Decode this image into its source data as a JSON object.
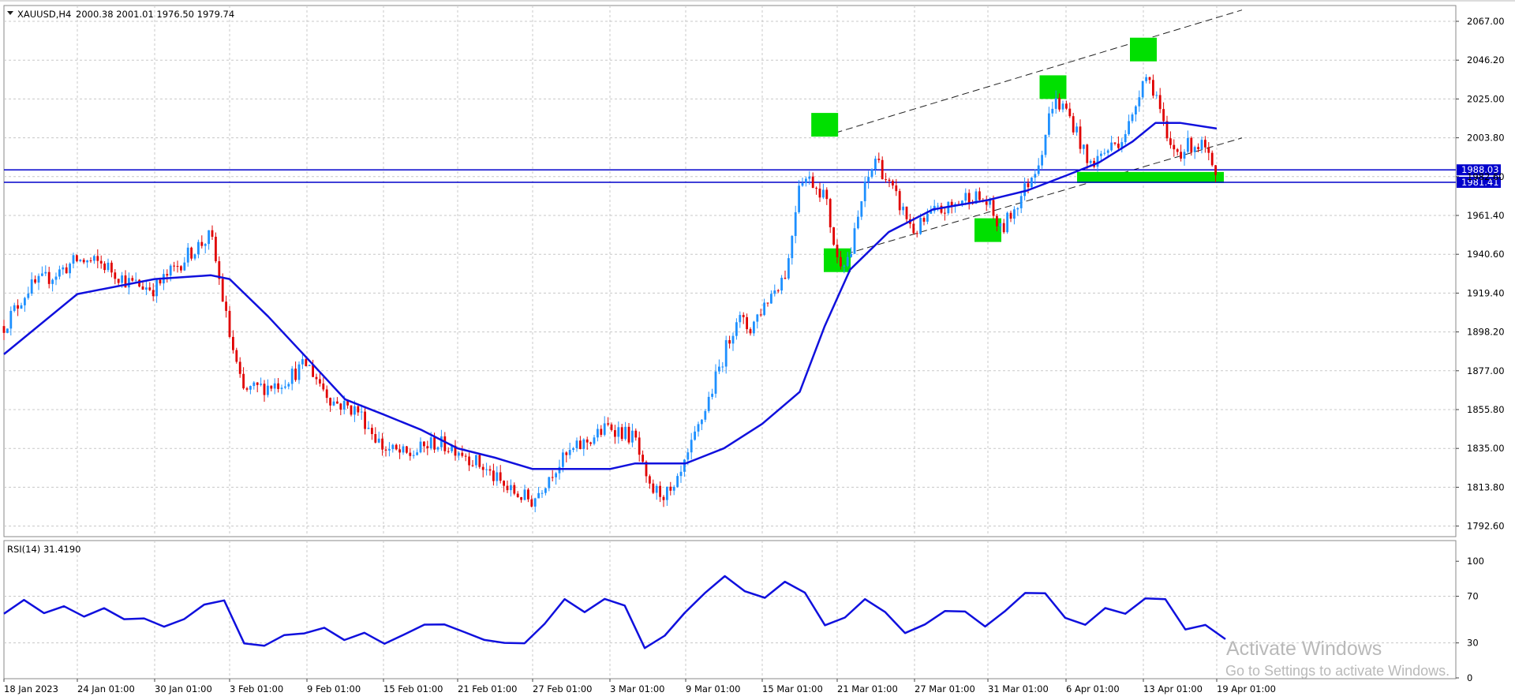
{
  "chart_header": {
    "symbol_timeframe": "XAUUSD,H4",
    "ohlc": "2000.38 2001.01 1976.50 1979.74",
    "window_menu_icon": "triangle-down-icon"
  },
  "rsi_header": {
    "label": "RSI(14) 31.4190"
  },
  "price_axis": {
    "ticks": [
      "2067.00",
      "2046.20",
      "2025.00",
      "2003.80",
      "1982.60",
      "1961.40",
      "1940.60",
      "1919.40",
      "1898.20",
      "1877.00",
      "1855.80",
      "1835.00",
      "1813.80",
      "1792.60"
    ]
  },
  "rsi_axis": {
    "ticks": [
      "100",
      "70",
      "30",
      "0"
    ]
  },
  "time_axis": {
    "labels": [
      "18 Jan 2023",
      "24 Jan 01:00",
      "30 Jan 01:00",
      "3 Feb 01:00",
      "9 Feb 01:00",
      "15 Feb 01:00",
      "21 Feb 01:00",
      "27 Feb 01:00",
      "3 Mar 01:00",
      "9 Mar 01:00",
      "15 Mar 01:00",
      "21 Mar 01:00",
      "27 Mar 01:00",
      "31 Mar 01:00",
      "6 Apr 01:00",
      "13 Apr 01:00",
      "19 Apr 01:00"
    ]
  },
  "levels": [
    {
      "label": "1988.03",
      "value": 1988.03
    },
    {
      "label": "1981.41",
      "value": 1981.41
    }
  ],
  "colors": {
    "bull": "#1e90ff",
    "bear": "#e00000",
    "ma": "#1010dd",
    "level": "#0000cc",
    "marker": "#00e000",
    "grid": "#c8c8c8",
    "channel": "#222222"
  },
  "watermark": {
    "line1": "Activate Windows",
    "line2": "Go to Settings to activate Windows."
  },
  "chart_data": [
    {
      "type": "candlestick",
      "title": "XAUUSD,H4",
      "ylim": [
        1782,
        2077
      ],
      "grid": true,
      "x": [
        "18 Jan",
        "24 Jan",
        "30 Jan",
        "3 Feb",
        "9 Feb",
        "15 Feb",
        "21 Feb",
        "27 Feb",
        "3 Mar",
        "9 Mar",
        "15 Mar",
        "21 Mar",
        "27 Mar",
        "31 Mar",
        "6 Apr",
        "13 Apr",
        "19 Apr"
      ],
      "close_path": [
        {
          "x": "18 Jan",
          "y": 1905
        },
        {
          "x": "20 Jan",
          "y": 1925
        },
        {
          "x": "22 Jan",
          "y": 1932
        },
        {
          "x": "24 Jan",
          "y": 1940
        },
        {
          "x": "26 Jan",
          "y": 1938
        },
        {
          "x": "28 Jan",
          "y": 1928
        },
        {
          "x": "30 Jan",
          "y": 1925
        },
        {
          "x": "1 Feb",
          "y": 1945
        },
        {
          "x": "2 Feb",
          "y": 1953
        },
        {
          "x": "3 Feb",
          "y": 1900
        },
        {
          "x": "4 Feb",
          "y": 1870
        },
        {
          "x": "7 Feb",
          "y": 1875
        },
        {
          "x": "9 Feb",
          "y": 1885
        },
        {
          "x": "11 Feb",
          "y": 1865
        },
        {
          "x": "13 Feb",
          "y": 1860
        },
        {
          "x": "15 Feb",
          "y": 1840
        },
        {
          "x": "17 Feb",
          "y": 1836
        },
        {
          "x": "19 Feb",
          "y": 1843
        },
        {
          "x": "21 Feb",
          "y": 1840
        },
        {
          "x": "23 Feb",
          "y": 1830
        },
        {
          "x": "25 Feb",
          "y": 1818
        },
        {
          "x": "27 Feb",
          "y": 1812
        },
        {
          "x": "28 Feb",
          "y": 1828
        },
        {
          "x": "1 Mar",
          "y": 1838
        },
        {
          "x": "3 Mar",
          "y": 1852
        },
        {
          "x": "5 Mar",
          "y": 1845
        },
        {
          "x": "6 Mar",
          "y": 1818
        },
        {
          "x": "8 Mar",
          "y": 1815
        },
        {
          "x": "9 Mar",
          "y": 1832
        },
        {
          "x": "11 Mar",
          "y": 1870
        },
        {
          "x": "13 Mar",
          "y": 1910
        },
        {
          "x": "14 Mar",
          "y": 1903
        },
        {
          "x": "15 Mar",
          "y": 1915
        },
        {
          "x": "17 Mar",
          "y": 1935
        },
        {
          "x": "18 Mar",
          "y": 1985
        },
        {
          "x": "19 Mar",
          "y": 1982
        },
        {
          "x": "20 Mar",
          "y": 1975
        },
        {
          "x": "21 Mar",
          "y": 1940
        },
        {
          "x": "22 Mar",
          "y": 1942
        },
        {
          "x": "23 Mar",
          "y": 1975
        },
        {
          "x": "24 Mar",
          "y": 1995
        },
        {
          "x": "25 Mar",
          "y": 1980
        },
        {
          "x": "27 Mar",
          "y": 1955
        },
        {
          "x": "28 Mar",
          "y": 1965
        },
        {
          "x": "29 Mar",
          "y": 1968
        },
        {
          "x": "30 Mar",
          "y": 1975
        },
        {
          "x": "31 Mar",
          "y": 1970
        },
        {
          "x": "1 Apr",
          "y": 1955
        },
        {
          "x": "3 Apr",
          "y": 1980
        },
        {
          "x": "4 Apr",
          "y": 1995
        },
        {
          "x": "5 Apr",
          "y": 2025
        },
        {
          "x": "6 Apr",
          "y": 2020
        },
        {
          "x": "7 Apr",
          "y": 2008
        },
        {
          "x": "8 Apr",
          "y": 1990
        },
        {
          "x": "10 Apr",
          "y": 2000
        },
        {
          "x": "11 Apr",
          "y": 2005
        },
        {
          "x": "12 Apr",
          "y": 2015
        },
        {
          "x": "13 Apr",
          "y": 2040
        },
        {
          "x": "14 Apr",
          "y": 2030
        },
        {
          "x": "15 Apr",
          "y": 2000
        },
        {
          "x": "16 Apr",
          "y": 1998
        },
        {
          "x": "17 Apr",
          "y": 2002
        },
        {
          "x": "18 Apr",
          "y": 2000
        },
        {
          "x": "19 Apr",
          "y": 1980
        }
      ],
      "moving_average": [
        {
          "x": "18 Jan",
          "y": 1890
        },
        {
          "x": "24 Jan",
          "y": 1922
        },
        {
          "x": "30 Jan",
          "y": 1930
        },
        {
          "x": "2 Feb",
          "y": 1932
        },
        {
          "x": "3 Feb",
          "y": 1930
        },
        {
          "x": "6 Feb",
          "y": 1910
        },
        {
          "x": "9 Feb",
          "y": 1888
        },
        {
          "x": "12 Feb",
          "y": 1866
        },
        {
          "x": "15 Feb",
          "y": 1858
        },
        {
          "x": "18 Feb",
          "y": 1850
        },
        {
          "x": "21 Feb",
          "y": 1840
        },
        {
          "x": "24 Feb",
          "y": 1835
        },
        {
          "x": "27 Feb",
          "y": 1829
        },
        {
          "x": "1 Mar",
          "y": 1829
        },
        {
          "x": "3 Mar",
          "y": 1829
        },
        {
          "x": "5 Mar",
          "y": 1832
        },
        {
          "x": "9 Mar",
          "y": 1832
        },
        {
          "x": "12 Mar",
          "y": 1840
        },
        {
          "x": "15 Mar",
          "y": 1853
        },
        {
          "x": "18 Mar",
          "y": 1870
        },
        {
          "x": "20 Mar",
          "y": 1905
        },
        {
          "x": "22 Mar",
          "y": 1935
        },
        {
          "x": "25 Mar",
          "y": 1955
        },
        {
          "x": "28 Mar",
          "y": 1967
        },
        {
          "x": "31 Mar",
          "y": 1972
        },
        {
          "x": "3 Apr",
          "y": 1977
        },
        {
          "x": "6 Apr",
          "y": 1985
        },
        {
          "x": "9 Apr",
          "y": 1992
        },
        {
          "x": "12 Apr",
          "y": 2003
        },
        {
          "x": "14 Apr",
          "y": 2013
        },
        {
          "x": "16 Apr",
          "y": 2013
        },
        {
          "x": "19 Apr",
          "y": 2010
        }
      ],
      "horizontal_levels": [
        1988.03,
        1981.41
      ],
      "channel_lines": [
        {
          "from": {
            "x": "20 Mar",
            "y": 2006
          },
          "to": {
            "x": "21 Apr",
            "y": 2073
          }
        },
        {
          "from": {
            "x": "20 Mar",
            "y": 1940
          },
          "to": {
            "x": "21 Apr",
            "y": 2005
          }
        }
      ],
      "highlight_markers": [
        {
          "x": "20 Mar",
          "y": 2012
        },
        {
          "x": "21 Mar",
          "y": 1940
        },
        {
          "x": "5 Apr",
          "y": 2032
        },
        {
          "x": "31 Mar",
          "y": 1956
        },
        {
          "x": "13 Apr",
          "y": 2052
        },
        {
          "x": "12 Apr",
          "y": 1984
        }
      ]
    },
    {
      "type": "line",
      "title": "RSI(14) 31.4190",
      "ylim": [
        0,
        100
      ],
      "series": [
        {
          "values": [
            55,
            65,
            58,
            60,
            52,
            62,
            48,
            52,
            45,
            48,
            65,
            66,
            28,
            30,
            35,
            38,
            45,
            30,
            40,
            30,
            35,
            48,
            45,
            38,
            35,
            28,
            30,
            48,
            65,
            58,
            68,
            60,
            28,
            35,
            55,
            75,
            85,
            75,
            70,
            80,
            75,
            45,
            50,
            70,
            55,
            38,
            48,
            55,
            58,
            45,
            55,
            75,
            72,
            50,
            48,
            58,
            55,
            70,
            65,
            43,
            46,
            31
          ]
        }
      ],
      "levels": [
        70,
        30
      ]
    }
  ]
}
